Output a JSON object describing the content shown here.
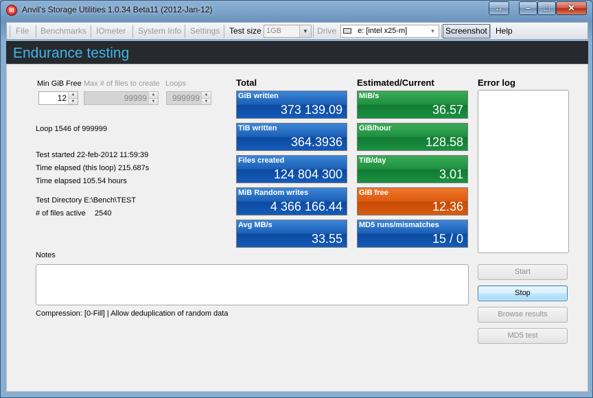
{
  "window": {
    "title": "Anvil's Storage Utilities 1.0.34 Beta11 (2012-Jan-12)",
    "icon_text": "III"
  },
  "toolbar": {
    "file": "File",
    "benchmarks": "Benchmarks",
    "iometer": "IOmeter",
    "system_info": "System Info",
    "settings": "Settings",
    "test_size_label": "Test size",
    "test_size_value": "1GB",
    "drive_label": "Drive",
    "drive_value": "e: [intel x25-m]",
    "screenshot": "Screenshot",
    "help": "Help"
  },
  "header": {
    "title": "Endurance testing"
  },
  "params": {
    "min_gib_free_label": "Min GiB Free",
    "min_gib_free_value": "12",
    "max_files_label": "Max # of files to create",
    "max_files_value": "99999",
    "loops_label": "Loops",
    "loops_value": "999999"
  },
  "info": {
    "loop": "Loop 1546 of 999999",
    "test_started": "Test started 22-feb-2012 11:59:39",
    "elapsed_loop": "Time elapsed (this loop) 215.687s",
    "elapsed_total": "Time elapsed 105.54 hours",
    "test_directory": "Test Directory E:\\Bench\\TEST",
    "files_active_label": "# of files active",
    "files_active_value": "2540"
  },
  "totals": {
    "heading": "Total",
    "tiles": [
      {
        "label": "GiB written",
        "value": "373 139.09"
      },
      {
        "label": "TiB written",
        "value": "364.3936"
      },
      {
        "label": "Files created",
        "value": "124 804 300"
      },
      {
        "label": "MiB Random writes",
        "value": "4 366 166.44"
      },
      {
        "label": "Avg MB/s",
        "value": "33.55"
      }
    ]
  },
  "estimates": {
    "heading": "Estimated/Current",
    "tiles": [
      {
        "label": "MiB/s",
        "value": "36.57"
      },
      {
        "label": "GiB/hour",
        "value": "128.58"
      },
      {
        "label": "TiB/day",
        "value": "3.01"
      },
      {
        "label": "GiB free",
        "value": "12.36"
      },
      {
        "label": "MD5 runs/mismatches",
        "value": "15 / 0"
      }
    ]
  },
  "errorlog": {
    "heading": "Error log"
  },
  "notes": {
    "label": "Notes"
  },
  "compression": "Compression: [0-Fill] | Allow deduplication of random data",
  "buttons": {
    "start": "Start",
    "stop": "Stop",
    "browse": "Browse results",
    "md5": "MD5 test"
  },
  "colors": {
    "header_text": "#41b5e8",
    "tile_blue": "#1a5fb6",
    "tile_green": "#1d9040",
    "tile_orange": "#dc5a10"
  }
}
